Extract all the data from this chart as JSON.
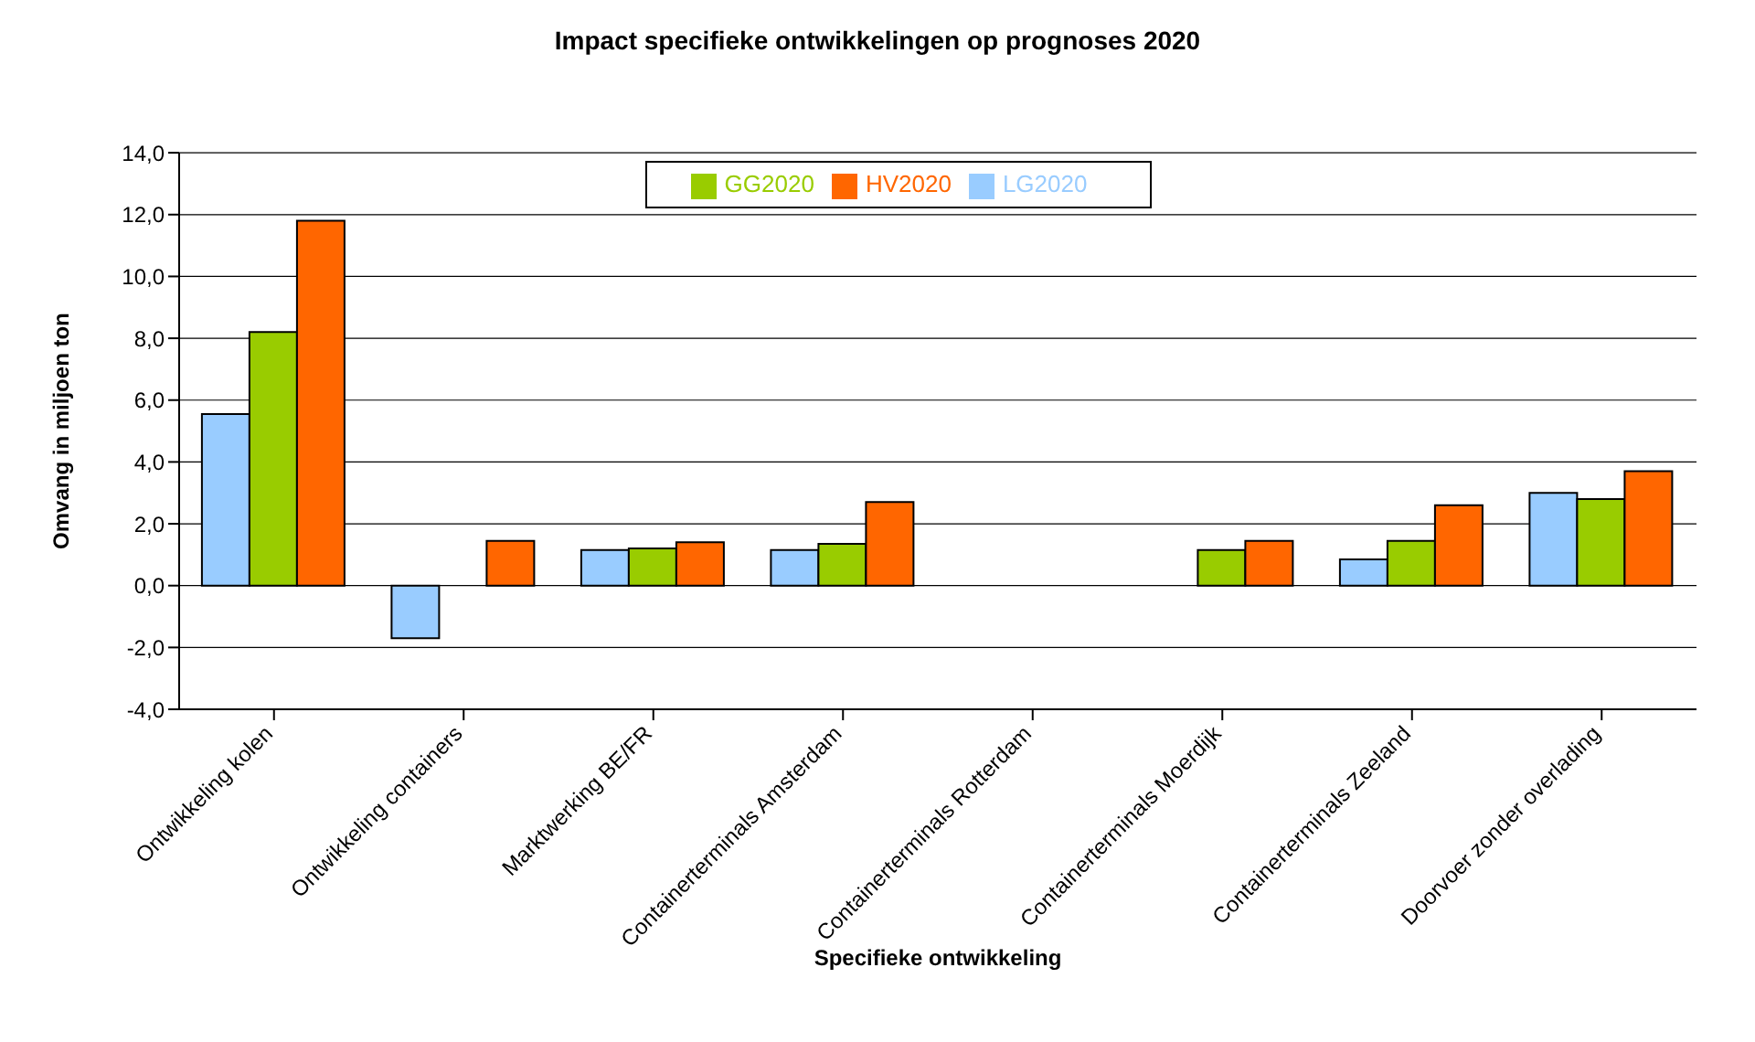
{
  "chart_data": {
    "type": "bar",
    "title": "Impact specifieke ontwikkelingen op prognoses 2020",
    "xlabel": "Specifieke ontwikkeling",
    "ylabel": "Omvang in miljoen ton",
    "categories": [
      "Ontwikkeling kolen",
      "Ontwikkeling containers",
      "Marktwerking BE/FR",
      "Containerterminals Amsterdam",
      "Containerterminals Rotterdam",
      "Containerterminals Moerdijk",
      "Containerterminals Zeeland",
      "Doorvoer zonder overlading"
    ],
    "series": [
      {
        "name": "LG2020",
        "color": "#99ccff",
        "values": [
          5.55,
          -1.7,
          1.15,
          1.15,
          null,
          null,
          0.85,
          3.0
        ]
      },
      {
        "name": "GG2020",
        "color": "#99cc00",
        "values": [
          8.2,
          null,
          1.2,
          1.35,
          null,
          1.15,
          1.45,
          2.8
        ]
      },
      {
        "name": "HV2020",
        "color": "#ff6600",
        "values": [
          11.8,
          1.45,
          1.4,
          2.7,
          null,
          1.45,
          2.6,
          3.7
        ]
      }
    ],
    "ylim": [
      -4,
      14
    ],
    "yticks": [
      {
        "value": -4,
        "label": "-4,0"
      },
      {
        "value": -2,
        "label": "-2,0"
      },
      {
        "value": 0,
        "label": "0,0"
      },
      {
        "value": 2,
        "label": "2,0"
      },
      {
        "value": 4,
        "label": "4,0"
      },
      {
        "value": 6,
        "label": "6,0"
      },
      {
        "value": 8,
        "label": "8,0"
      },
      {
        "value": 10,
        "label": "10,0"
      },
      {
        "value": 12,
        "label": "12,0"
      },
      {
        "value": 14,
        "label": "14,0"
      }
    ],
    "grid": "y",
    "legend": "top"
  }
}
